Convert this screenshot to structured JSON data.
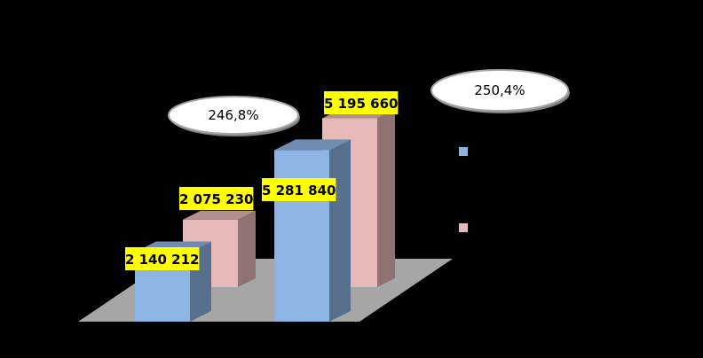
{
  "chart_data": {
    "type": "bar",
    "categories": [
      "",
      ""
    ],
    "series": [
      {
        "values": [
          2140212,
          5281840
        ],
        "color": "#8EB4E3"
      },
      {
        "values": [
          2075230,
          5195660
        ],
        "color": "#E6B9B8"
      }
    ],
    "data_labels": [
      [
        "2 140 212",
        "5 281 840"
      ],
      [
        "2 075 230",
        "5 195 660"
      ]
    ],
    "ratio_labels": [
      "246,8%",
      "250,4%"
    ],
    "ylim": [
      0,
      6000000
    ],
    "grid": true,
    "three_d": true,
    "legend_position": "right",
    "label_background": "#FFFF00",
    "background": "#000000",
    "floor_color": "#A6A6A6"
  }
}
